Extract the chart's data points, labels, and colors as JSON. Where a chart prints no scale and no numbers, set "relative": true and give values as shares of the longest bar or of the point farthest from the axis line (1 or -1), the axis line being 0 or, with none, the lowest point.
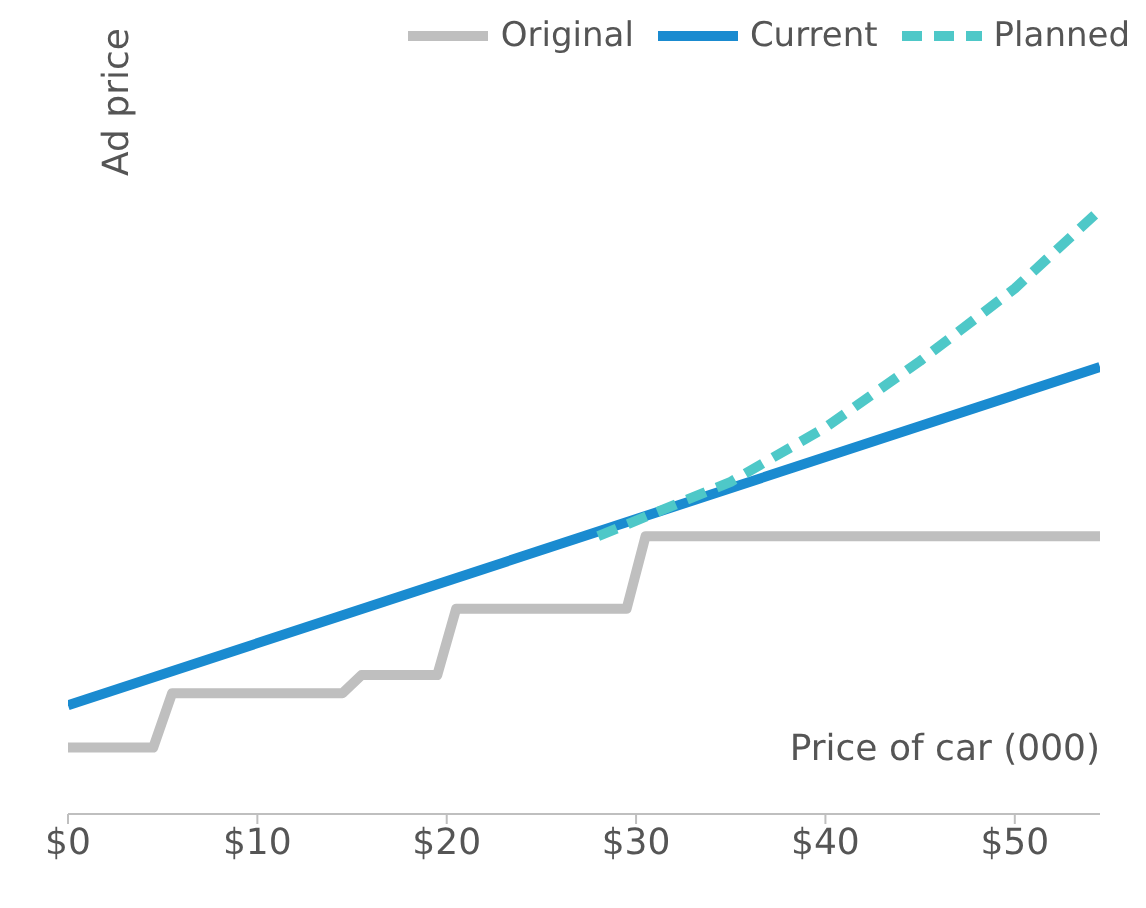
{
  "chart_data": {
    "type": "line",
    "relative": true,
    "xlabel": "Price of car (000)",
    "ylabel": "Ad price",
    "legend": "top right",
    "xlim": [
      0,
      54.5
    ],
    "xticks": [
      {
        "value": 0,
        "label": "$0"
      },
      {
        "value": 10,
        "label": "$10"
      },
      {
        "value": 20,
        "label": "$20"
      },
      {
        "value": 30,
        "label": "$30"
      },
      {
        "value": 40,
        "label": "$40"
      },
      {
        "value": 50,
        "label": "$50"
      }
    ],
    "series": [
      {
        "name": "Original",
        "color": "#bfbfbf",
        "line_style": "solid",
        "x": [
          0,
          4.5,
          5.5,
          14.5,
          15.5,
          19.5,
          20.5,
          29.5,
          30.5,
          54.5
        ],
        "values": [
          0.11,
          0.11,
          0.2,
          0.2,
          0.23,
          0.23,
          0.34,
          0.34,
          0.46,
          0.46
        ]
      },
      {
        "name": "Current",
        "color": "#1a8bd0",
        "line_style": "solid",
        "x": [
          0,
          54.5
        ],
        "values": [
          0.18,
          0.74
        ]
      },
      {
        "name": "Planned",
        "color": "#4ec8c8",
        "line_style": "dashed",
        "x": [
          28,
          35,
          40,
          45,
          50,
          54.5
        ],
        "values": [
          0.46,
          0.55,
          0.64,
          0.75,
          0.87,
          1
        ]
      }
    ]
  }
}
